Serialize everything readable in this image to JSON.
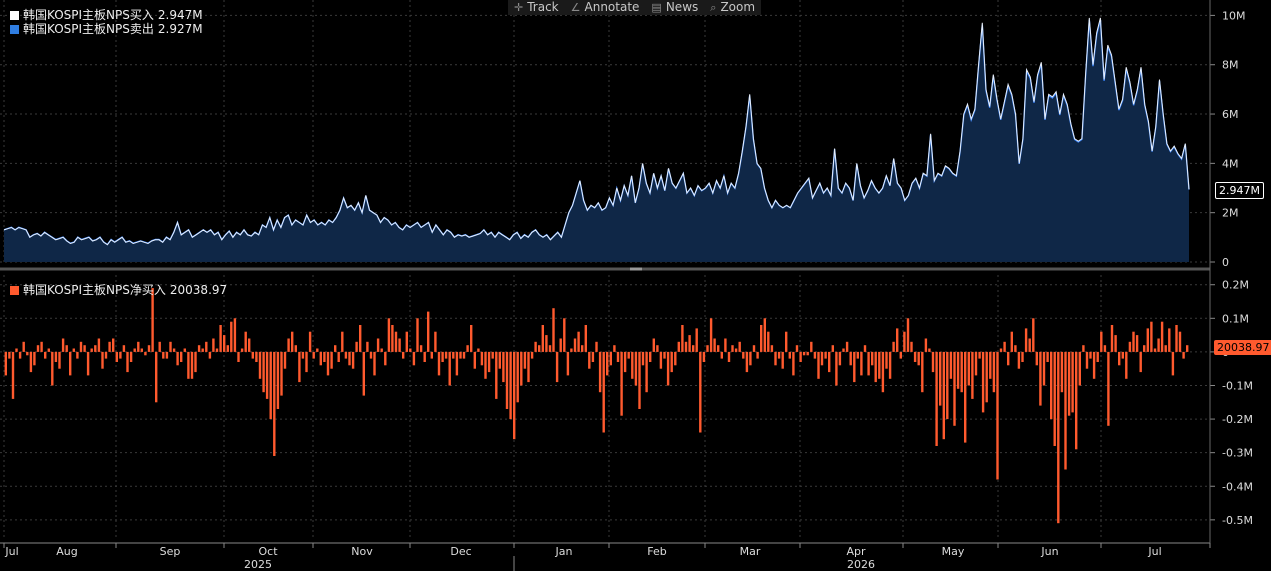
{
  "toolbar": {
    "track": "Track",
    "annotate": "Annotate",
    "news": "News",
    "zoom": "Zoom"
  },
  "legend_top": [
    {
      "label": "韩国KOSPI主板NPS买入",
      "value": "2.947M",
      "color": "#ffffff"
    },
    {
      "label": "韩国KOSPI主板NPS卖出",
      "value": "2.927M",
      "color": "#2f7de1"
    }
  ],
  "legend_bottom": {
    "label": "韩国KOSPI主板NPS净买入",
    "value": "20038.97",
    "color": "#ff5a2e"
  },
  "last_tags": {
    "top": "2.947M",
    "bottom": "20038.97"
  },
  "colors": {
    "buy": "#ffffff",
    "sell": "#3a86ff",
    "fill": "#0f2747",
    "net": "#ff5a2e",
    "grid": "#3a3a3a",
    "background": "#000000"
  },
  "chart_data": [
    {
      "type": "area",
      "series": [
        {
          "name": "韩国KOSPI主板NPS买入",
          "values_m": [
            1.3,
            1.35,
            1.4,
            1.3,
            1.4,
            1.35,
            1.3,
            1.0,
            1.1,
            1.15,
            1.05,
            1.2,
            1.1,
            1.0,
            0.9,
            0.95,
            1.0,
            0.85,
            0.75,
            0.8,
            1.0,
            0.9,
            0.95,
            1.0,
            0.85,
            0.9,
            1.0,
            0.8,
            0.7,
            0.9,
            0.8,
            0.9,
            1.0,
            0.8,
            0.85,
            0.75,
            0.8,
            0.85,
            0.8,
            0.75,
            0.85,
            0.9,
            0.9,
            0.8,
            1.0,
            0.9,
            1.2,
            1.6,
            1.1,
            1.2,
            1.3,
            1.0,
            1.1,
            1.2,
            1.3,
            1.2,
            1.3,
            1.1,
            1.2,
            0.9,
            1.1,
            1.25,
            1.0,
            1.2,
            1.1,
            1.3,
            1.1,
            1.05,
            1.2,
            1.1,
            1.5,
            1.4,
            1.8,
            1.3,
            1.7,
            1.4,
            1.8,
            1.9,
            1.5,
            1.7,
            1.6,
            1.5,
            1.9,
            1.6,
            1.7,
            1.5,
            1.6,
            1.5,
            1.7,
            1.6,
            1.8,
            2.1,
            2.6,
            2.2,
            2.3,
            2.1,
            2.4,
            2.0,
            2.7,
            2.1,
            2.0,
            1.9,
            1.6,
            1.8,
            1.7,
            1.5,
            1.6,
            1.4,
            1.3,
            1.5,
            1.4,
            1.5,
            1.6,
            1.4,
            1.5,
            1.6,
            1.2,
            1.5,
            1.3,
            1.1,
            1.3,
            1.2,
            1.0,
            1.1,
            1.05,
            1.1,
            1.0,
            1.05,
            1.1,
            1.15,
            1.3,
            1.1,
            1.2,
            1.0,
            1.2,
            1.1,
            1.0,
            0.9,
            1.1,
            1.2,
            0.95,
            1.1,
            1.0,
            1.2,
            1.3,
            1.1,
            1.0,
            1.1,
            0.9,
            1.05,
            1.2,
            1.0,
            1.5,
            2.0,
            2.3,
            2.8,
            3.3,
            2.5,
            2.1,
            2.3,
            2.2,
            2.4,
            2.1,
            2.2,
            2.6,
            2.3,
            3.0,
            2.5,
            3.1,
            2.7,
            3.5,
            2.4,
            3.0,
            4.0,
            3.2,
            2.8,
            3.6,
            3.0,
            3.5,
            2.9,
            3.8,
            3.2,
            3.0,
            3.3,
            3.6,
            2.8,
            3.0,
            2.7,
            3.1,
            2.9,
            3.0,
            3.2,
            2.8,
            3.3,
            3.0,
            3.5,
            2.8,
            3.2,
            3.0,
            3.6,
            4.5,
            5.5,
            6.8,
            5.0,
            4.0,
            3.8,
            3.0,
            2.5,
            2.2,
            2.5,
            2.3,
            2.2,
            2.3,
            2.2,
            2.5,
            2.8,
            3.0,
            3.2,
            3.4,
            2.6,
            2.9,
            3.2,
            2.8,
            3.0,
            2.7,
            4.6,
            3.0,
            2.8,
            3.2,
            3.0,
            2.5,
            4.0,
            3.1,
            2.6,
            2.9,
            3.3,
            3.0,
            2.8,
            3.0,
            3.5,
            3.1,
            4.2,
            3.2,
            3.0,
            2.5,
            2.7,
            3.2,
            3.4,
            3.0,
            3.6,
            3.5,
            5.2,
            3.3,
            3.6,
            3.5,
            3.9,
            3.8,
            3.6,
            3.5,
            4.5,
            6.0,
            6.4,
            5.8,
            6.2,
            8.0,
            9.7,
            7.0,
            6.3,
            7.6,
            6.6,
            5.8,
            6.5,
            7.2,
            6.8,
            6.0,
            4.0,
            5.0,
            7.8,
            7.5,
            6.5,
            7.6,
            8.1,
            5.8,
            6.8,
            6.7,
            6.9,
            6.0,
            6.8,
            6.4,
            5.6,
            5.0,
            4.9,
            5.0,
            7.6,
            9.9,
            8.0,
            9.3,
            9.9,
            7.4,
            8.8,
            8.4,
            7.3,
            6.2,
            6.6,
            7.9,
            7.3,
            6.4,
            7.0,
            7.9,
            6.4,
            5.7,
            4.5,
            5.5,
            7.4,
            6.0,
            4.8,
            4.5,
            4.7,
            4.4,
            4.2,
            4.8,
            2.947
          ]
        },
        {
          "name": "韩国KOSPI主板NPS卖出",
          "last_value_m": 2.927
        }
      ],
      "ylabel": "",
      "yticks": [
        "0",
        "2M",
        "4M",
        "6M",
        "8M",
        "10M"
      ],
      "ylim": [
        0,
        10.3
      ]
    },
    {
      "type": "bar",
      "series": [
        {
          "name": "韩国KOSPI主板NPS净买入",
          "values_m": [
            -0.07,
            -0.02,
            -0.14,
            0.01,
            -0.02,
            0.03,
            -0.01,
            -0.06,
            -0.04,
            0.02,
            0.03,
            -0.02,
            0.01,
            -0.1,
            -0.03,
            -0.05,
            0.04,
            0.02,
            -0.07,
            0.01,
            -0.02,
            0.03,
            0.02,
            -0.07,
            0.01,
            0.02,
            0.04,
            -0.05,
            -0.02,
            0.03,
            0.04,
            -0.03,
            -0.02,
            0.02,
            -0.06,
            -0.03,
            0.01,
            0.03,
            0.01,
            -0.01,
            0.02,
            0.19,
            -0.15,
            0.03,
            -0.02,
            -0.02,
            0.03,
            0.01,
            -0.04,
            -0.03,
            0.01,
            -0.08,
            -0.08,
            -0.06,
            0.02,
            0.01,
            0.03,
            -0.02,
            0.04,
            0.01,
            0.08,
            0.05,
            0.02,
            0.09,
            0.1,
            -0.03,
            0.01,
            0.06,
            0.04,
            -0.02,
            -0.03,
            -0.08,
            -0.12,
            -0.14,
            -0.2,
            -0.31,
            -0.17,
            -0.13,
            -0.05,
            0.04,
            0.06,
            0.02,
            -0.09,
            -0.02,
            -0.06,
            0.06,
            -0.02,
            0.01,
            -0.04,
            -0.03,
            -0.07,
            -0.05,
            0.02,
            -0.03,
            0.06,
            -0.02,
            -0.04,
            -0.05,
            0.03,
            0.08,
            -0.13,
            0.03,
            -0.02,
            -0.07,
            0.04,
            0.01,
            -0.04,
            0.1,
            0.08,
            0.06,
            0.04,
            -0.02,
            0.06,
            0.01,
            -0.04,
            0.1,
            0.02,
            -0.03,
            0.12,
            -0.02,
            0.06,
            -0.07,
            -0.03,
            -0.02,
            -0.1,
            -0.02,
            -0.07,
            -0.02,
            -0.02,
            0.02,
            0.08,
            -0.05,
            0.01,
            -0.04,
            -0.08,
            -0.06,
            -0.02,
            -0.14,
            -0.05,
            -0.09,
            -0.17,
            -0.2,
            -0.26,
            -0.15,
            -0.1,
            -0.05,
            -0.09,
            -0.02,
            0.03,
            0.02,
            0.08,
            0.05,
            0.02,
            0.13,
            -0.09,
            0.04,
            0.1,
            -0.07,
            0.01,
            0.04,
            0.06,
            0.02,
            0.08,
            -0.05,
            -0.03,
            0.03,
            -0.12,
            -0.24,
            -0.07,
            -0.04,
            0.02,
            -0.03,
            -0.19,
            -0.06,
            -0.02,
            -0.08,
            -0.1,
            -0.17,
            -0.04,
            -0.12,
            -0.03,
            0.04,
            0.02,
            -0.05,
            -0.02,
            -0.1,
            -0.06,
            -0.04,
            0.03,
            0.08,
            0.03,
            0.05,
            0.02,
            0.07,
            -0.24,
            -0.03,
            0.02,
            0.1,
            0.04,
            0.02,
            -0.02,
            0.04,
            -0.03,
            0.02,
            0.01,
            0.03,
            -0.02,
            -0.06,
            -0.04,
            0.02,
            -0.02,
            0.08,
            0.1,
            0.06,
            0.02,
            -0.04,
            -0.02,
            -0.05,
            0.06,
            -0.02,
            -0.07,
            0.02,
            -0.03,
            -0.01,
            -0.01,
            0.03,
            -0.02,
            -0.08,
            -0.04,
            -0.02,
            -0.06,
            0.02,
            -0.1,
            -0.04,
            0.01,
            0.03,
            -0.04,
            -0.09,
            -0.02,
            -0.07,
            0.02,
            -0.07,
            -0.04,
            -0.09,
            -0.08,
            -0.12,
            -0.05,
            -0.08,
            0.03,
            0.07,
            -0.02,
            0.06,
            0.1,
            0.03,
            -0.03,
            -0.04,
            -0.12,
            0.04,
            0.01,
            -0.06,
            -0.28,
            -0.16,
            -0.26,
            -0.2,
            -0.08,
            -0.22,
            -0.11,
            -0.12,
            -0.27,
            -0.1,
            -0.14,
            -0.07,
            -0.02,
            -0.18,
            -0.15,
            -0.08,
            -0.12,
            -0.38,
            0.01,
            0.03,
            -0.04,
            0.06,
            0.02,
            -0.05,
            -0.03,
            0.07,
            0.04,
            0.1,
            -0.04,
            -0.16,
            -0.1,
            -0.03,
            -0.2,
            -0.28,
            -0.51,
            -0.12,
            -0.35,
            -0.19,
            -0.18,
            -0.29,
            -0.1,
            0.02,
            -0.05,
            -0.02,
            -0.08,
            -0.03,
            0.06,
            0.02,
            -0.22,
            0.08,
            0.05,
            -0.04,
            -0.02,
            -0.08,
            0.03,
            0.06,
            0.05,
            -0.06,
            0.02,
            0.07,
            0.09,
            0.01,
            0.04,
            0.09,
            0.02,
            0.07,
            -0.07,
            0.08,
            0.06,
            -0.02,
            0.02
          ]
        }
      ],
      "yticks": [
        "0.2M",
        "0.1M",
        "0",
        "-0.1M",
        "-0.2M",
        "-0.3M",
        "-0.4M",
        "-0.5M"
      ],
      "ylim": [
        -0.56,
        0.22
      ]
    }
  ],
  "x_axis": {
    "months": [
      "Jul",
      "Aug",
      "Sep",
      "Oct",
      "Nov",
      "Dec",
      "Jan",
      "Feb",
      "Mar",
      "Apr",
      "May",
      "Jun",
      "Jul"
    ],
    "years": [
      "2025",
      "2026"
    ]
  }
}
